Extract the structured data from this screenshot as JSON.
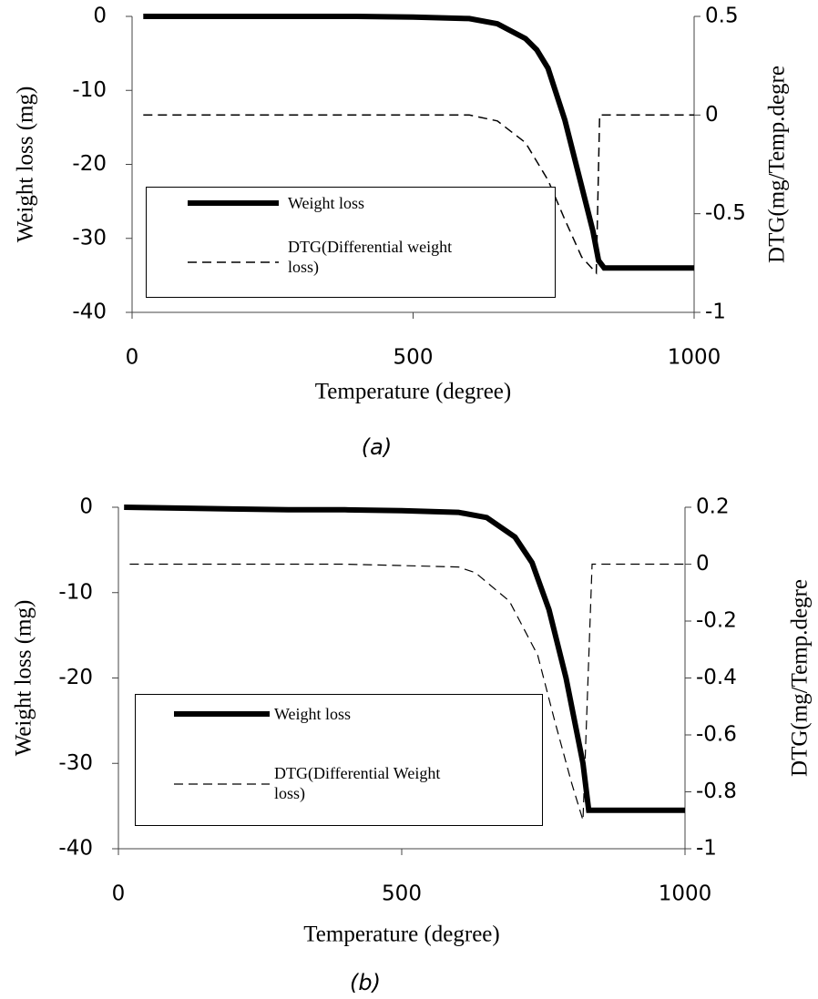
{
  "chart_data": [
    {
      "type": "line",
      "caption": "(a)",
      "xlabel": "Temperature (degree)",
      "ylabel": "Weight loss (mg)",
      "y2label": "DTG(mg/Temp.degre",
      "xlim": [
        0,
        1000
      ],
      "xticks": [
        0,
        500,
        1000
      ],
      "ylim": [
        -40,
        0
      ],
      "yticks": [
        0,
        -10,
        -20,
        -30,
        -40
      ],
      "y2lim": [
        -1,
        0.5
      ],
      "y2ticks": [
        0.5,
        0,
        -0.5,
        -1
      ],
      "series": [
        {
          "name": "Weight loss",
          "color": "#000000",
          "line_style": "solid",
          "linewidth": 6,
          "x": [
            20,
            100,
            200,
            300,
            400,
            500,
            600,
            650,
            700,
            720,
            740,
            770,
            800,
            820,
            830,
            840,
            900,
            1000
          ],
          "values": [
            0,
            0,
            0,
            0,
            0,
            -0.1,
            -0.3,
            -1,
            -3,
            -4.5,
            -7,
            -14,
            -23,
            -29,
            -33,
            -34,
            -34,
            -34
          ]
        },
        {
          "name": "DTG(Differential weight loss)",
          "color": "#000000",
          "line_style": "dashed",
          "linewidth": 1.5,
          "axis": "y2",
          "x": [
            20,
            200,
            400,
            600,
            650,
            700,
            740,
            770,
            800,
            826,
            832,
            900,
            1000
          ],
          "values": [
            0,
            0,
            0,
            0,
            -0.03,
            -0.14,
            -0.33,
            -0.53,
            -0.72,
            -0.8,
            0,
            0,
            0
          ]
        }
      ]
    },
    {
      "type": "line",
      "caption": "(b)",
      "xlabel": "Temperature (degree)",
      "ylabel": "Weight loss (mg)",
      "y2label": "DTG(mg/Temp.degre",
      "xlim": [
        0,
        1000
      ],
      "xticks": [
        0,
        500,
        1000
      ],
      "ylim": [
        -40,
        0
      ],
      "yticks": [
        0,
        -10,
        -20,
        -30,
        -40
      ],
      "y2lim": [
        -1,
        0.2
      ],
      "y2ticks": [
        0.2,
        0,
        -0.2,
        -0.4,
        -0.6,
        -0.8,
        -1
      ],
      "series": [
        {
          "name": "Weight loss",
          "color": "#000000",
          "line_style": "solid",
          "linewidth": 6,
          "x": [
            10,
            100,
            200,
            300,
            400,
            500,
            600,
            650,
            700,
            730,
            760,
            790,
            820,
            830,
            900,
            1000
          ],
          "values": [
            0,
            -0.1,
            -0.2,
            -0.3,
            -0.3,
            -0.4,
            -0.6,
            -1.2,
            -3.5,
            -6.5,
            -12,
            -20,
            -30,
            -35.5,
            -35.5,
            -35.5
          ]
        },
        {
          "name": "DTG(Differential Weight loss)",
          "color": "#000000",
          "line_style": "dashed",
          "linewidth": 1.2,
          "axis": "y2",
          "x": [
            20,
            200,
            400,
            600,
            630,
            690,
            740,
            770,
            800,
            820,
            836,
            900,
            1000
          ],
          "values": [
            0,
            0,
            0,
            -0.01,
            -0.03,
            -0.13,
            -0.32,
            -0.55,
            -0.77,
            -0.9,
            0,
            0,
            0
          ]
        }
      ]
    }
  ]
}
